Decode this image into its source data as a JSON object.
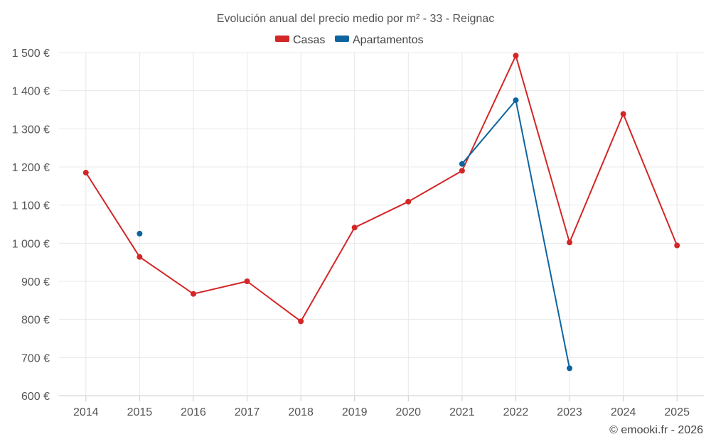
{
  "chart_data": {
    "type": "line",
    "title": "Evolución anual del precio medio por m² - 33 - Reignac",
    "categories": [
      "2014",
      "2015",
      "2016",
      "2017",
      "2018",
      "2019",
      "2020",
      "2021",
      "2022",
      "2023",
      "2024",
      "2025"
    ],
    "y_tick_labels": [
      "600 €",
      "700 €",
      "800 €",
      "900 €",
      "1 000 €",
      "1 100 €",
      "1 200 €",
      "1 300 €",
      "1 400 €",
      "1 500 €"
    ],
    "y_ticks": [
      600,
      700,
      800,
      900,
      1000,
      1100,
      1200,
      1300,
      1400,
      1500
    ],
    "ylim": [
      600,
      1500
    ],
    "grid": true,
    "legend_position": "top-center",
    "series": [
      {
        "name": "Casas",
        "color": "#d32626",
        "values": [
          1185,
          964,
          867,
          900,
          795,
          1041,
          1109,
          1190,
          1492,
          1002,
          1339,
          994
        ]
      },
      {
        "name": "Apartamentos",
        "color": "#0e649e",
        "values": [
          null,
          1025,
          null,
          null,
          null,
          null,
          null,
          1208,
          1375,
          672,
          null,
          null
        ]
      }
    ],
    "credit": "© emooki.fr - 2026"
  }
}
